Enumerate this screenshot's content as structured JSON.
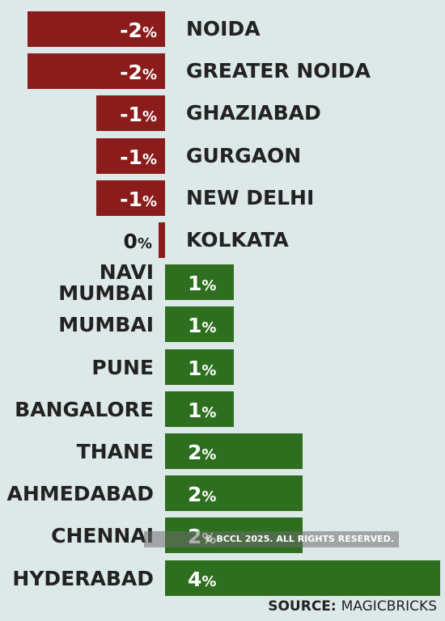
{
  "chart_data": {
    "type": "bar",
    "orientation": "horizontal",
    "categories": [
      "NOIDA",
      "GREATER NOIDA",
      "GHAZIABAD",
      "GURGAON",
      "NEW DELHI",
      "KOLKATA",
      "NAVI\nMUMBAI",
      "MUMBAI",
      "PUNE",
      "BANGALORE",
      "THANE",
      "AHMEDABAD",
      "CHENNAI",
      "HYDERABAD"
    ],
    "values": [
      -2,
      -2,
      -1,
      -1,
      -1,
      0,
      1,
      1,
      1,
      1,
      2,
      2,
      2,
      4
    ],
    "value_suffix": "%",
    "value_labels": [
      "-2",
      "-2",
      "-1",
      "-1",
      "-1",
      "0",
      "1",
      "1",
      "1",
      "1",
      "2",
      "2",
      "2",
      "4"
    ],
    "colors": {
      "negative": "#8b1c1c",
      "positive": "#2d6e1f"
    },
    "xlim": [
      -2,
      4
    ],
    "grid": false,
    "legend": "none"
  },
  "source": {
    "prefix": "SOURCE:",
    "value": "MAGICBRICKS"
  },
  "watermark": "© BCCL 2025. ALL RIGHTS RESERVED."
}
